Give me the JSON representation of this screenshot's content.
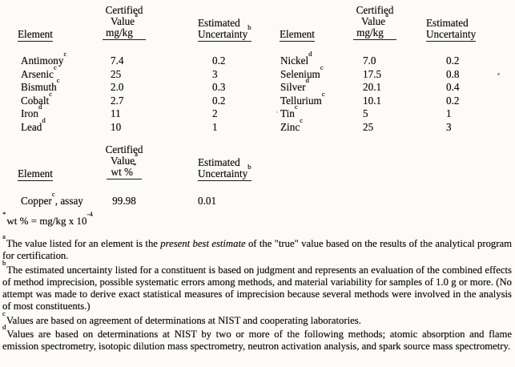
{
  "table1": {
    "left": {
      "col_element": "Element",
      "col_value_l1": "Certified",
      "col_value_l2": "Value",
      "col_value_l2_sup": "a",
      "col_value_l3": "mg/kg",
      "col_unc_l1": "Estimated",
      "col_unc_l2": "Uncertainty",
      "col_unc_l2_sup": "b",
      "rows": [
        {
          "element": "Antimony",
          "sup": "c",
          "value": "7.4",
          "uncertainty": "0.2"
        },
        {
          "element": "Arsenic",
          "sup": "c",
          "value": "25",
          "uncertainty": "3"
        },
        {
          "element": "Bismuth",
          "sup": "c",
          "value": "2.0",
          "uncertainty": "0.3"
        },
        {
          "element": "Cobalt",
          "sup": "c",
          "value": "2.7",
          "uncertainty": "0.2"
        },
        {
          "element": "Iron",
          "sup": "d",
          "value": "11",
          "uncertainty": "2"
        },
        {
          "element": "Lead",
          "sup": "d",
          "value": "10",
          "uncertainty": "1"
        }
      ]
    },
    "right": {
      "col_element": "Element",
      "col_value_l1": "Certified",
      "col_value_l2": "Value",
      "col_value_l2_sup": "a",
      "col_value_l3": "mg/kg",
      "col_unc_l1": "Estimated",
      "col_unc_l2": "Uncertainty",
      "rows": [
        {
          "element": "Nickel",
          "sup": "d",
          "value": "7.0",
          "uncertainty": "0.2"
        },
        {
          "element": "Selenium",
          "sup": "c",
          "value": "17.5",
          "uncertainty": "0.8"
        },
        {
          "element": "Silver",
          "sup": "d",
          "value": "20.1",
          "uncertainty": "0.4"
        },
        {
          "element": "Tellurium",
          "sup": "c",
          "value": "10.1",
          "uncertainty": "0.2"
        },
        {
          "element": "Tin",
          "sup": "c",
          "value": "5",
          "uncertainty": "1"
        },
        {
          "element": "Zinc",
          "sup": "c",
          "value": "25",
          "uncertainty": "3"
        }
      ]
    }
  },
  "table2": {
    "col_element": "Element",
    "col_value_l1": "Certified",
    "col_value_l2": "Value",
    "col_value_l2_sup": "a",
    "col_value_l3": "wt %",
    "col_value_l3_sup": "*",
    "col_unc_l1": "Estimated",
    "col_unc_l2": "Uncertainty",
    "col_unc_l2_sup": "b",
    "row": {
      "element": "Copper",
      "sup": "c",
      "suffix": ", assay",
      "value": "99.98",
      "uncertainty": "0.01"
    }
  },
  "footnotes": {
    "star": {
      "marker": "*",
      "text": "wt % = mg/kg x 10",
      "exponent": "-4"
    },
    "a": {
      "marker": "a",
      "text_pre": "The value listed for an element is the ",
      "italic": "present best estimate",
      "text_post": " of the \"true\" value based on the results of the analytical program for certification."
    },
    "b": {
      "marker": "b",
      "text": "The estimated uncertainty listed for a constituent is based on judgment and represents an evaluation of the combined effects of method imprecision, possible systematic errors among methods, and material variability for samples of 1.0 g or more.  (No attempt was made to derive exact statistical measures of imprecision because several methods were involved in the analysis of most constituents.)"
    },
    "c": {
      "marker": "c",
      "text": "Values are based on agreement of determinations at NIST and cooperating laboratories."
    },
    "d": {
      "marker": "d",
      "text": "Values are based on determinations at NIST by two or more of the following methods; atomic absorption and flame emission spectrometry, isotopic dilution mass spectrometry, neutron activation analysis, and spark source mass spectrometry."
    }
  }
}
